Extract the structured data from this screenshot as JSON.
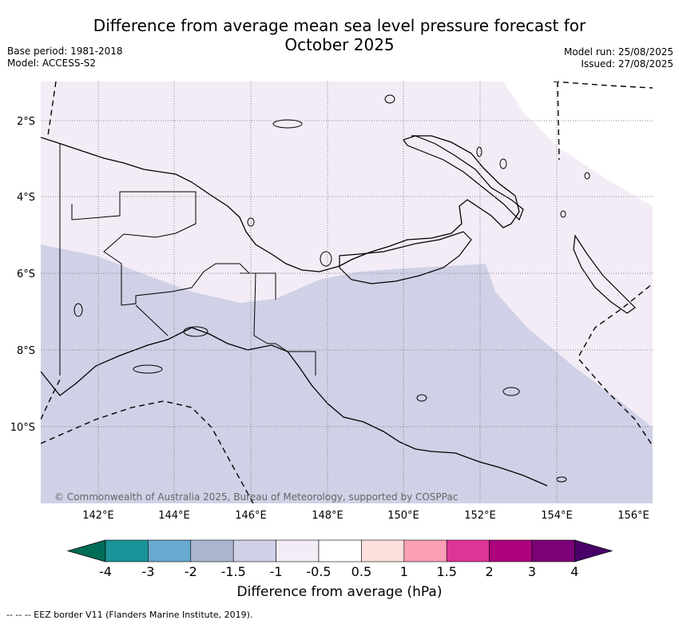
{
  "header": {
    "title_line1": "Difference from average mean sea level pressure forecast for",
    "title_line2": "October 2025",
    "base_period": "Base period: 1981-2018",
    "model": "Model: ACCESS-S2",
    "model_run": "Model run: 25/08/2025",
    "issued": "Issued: 27/08/2025"
  },
  "map": {
    "lat_labels": [
      "2°S",
      "4°S",
      "6°S",
      "8°S",
      "10°S"
    ],
    "lon_labels": [
      "142°E",
      "144°E",
      "146°E",
      "148°E",
      "150°E",
      "152°E",
      "154°E",
      "156°E"
    ],
    "copyright": "© Commonwealth of Australia 2025, Bureau of Meteorology, supported by COSPPac",
    "regions": [
      {
        "category": "-1.5 to -1",
        "color": "#d0d1e6"
      },
      {
        "category": "-1 to -0.5",
        "color": "#f3ecf6"
      }
    ]
  },
  "colorbar": {
    "title": "Difference from average (hPa)",
    "labels": [
      "-4",
      "-3",
      "-2",
      "-1.5",
      "-1",
      "-0.5",
      "0.5",
      "1",
      "1.5",
      "2",
      "3",
      "4"
    ],
    "colors": [
      "#1a9399",
      "#67a9cf",
      "#aab7cf",
      "#d0d1e6",
      "#f3ecf6",
      "#ffffff",
      "#fde0dd",
      "#fa9fb5",
      "#dd3497",
      "#ae017e",
      "#7a0177"
    ],
    "under_color": "#016c59",
    "over_color": "#49006a"
  },
  "footer": {
    "legend": "-- -- -- EEZ border V11 (Flanders Marine Institute, 2019)."
  }
}
